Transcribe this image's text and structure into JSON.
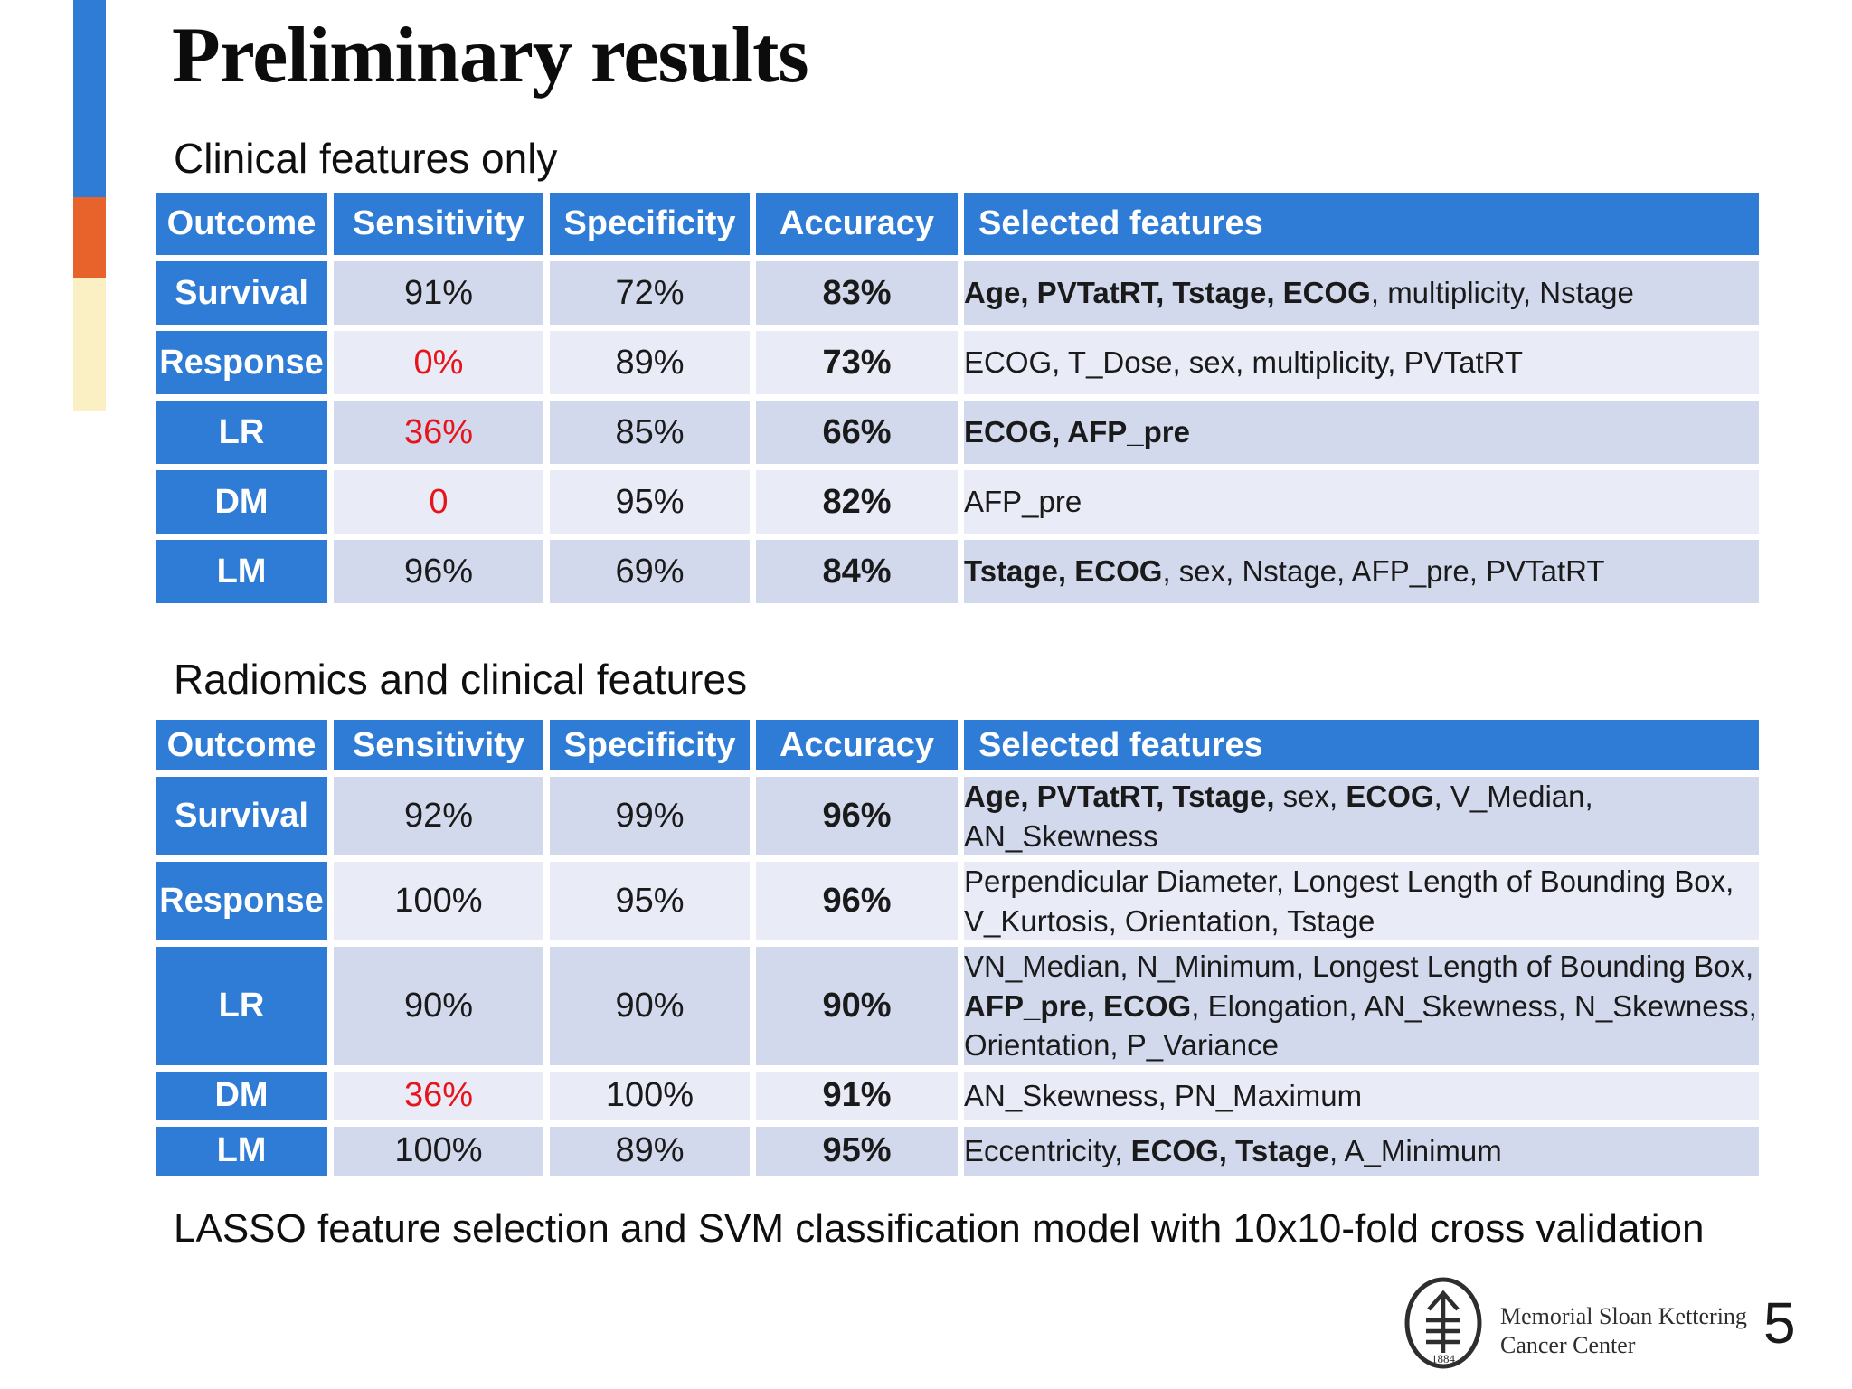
{
  "slide": {
    "title": "Preliminary results",
    "footnote": "LASSO feature selection and SVM classification model with 10x10-fold cross validation",
    "page_number": "5"
  },
  "logo": {
    "line1": "Memorial Sloan Kettering",
    "line2": "Cancer Center",
    "year": "1884"
  },
  "colors": {
    "header_blue": "#2e7cd6",
    "accent_blue": "#2e7cd6",
    "accent_orange": "#e8632c",
    "accent_cream": "#fbefc4",
    "band_dark": "#d2d9ec",
    "band_light": "#e9ecf7",
    "alert_red": "#e8141b"
  },
  "tables": [
    {
      "section_title": "Clinical features only",
      "columns": [
        "Outcome",
        "Sensitivity",
        "Specificity",
        "Accuracy",
        "Selected features"
      ],
      "rows": [
        {
          "outcome": "Survival",
          "sensitivity": {
            "text": "91%",
            "red": false
          },
          "specificity": "72%",
          "accuracy": "83%",
          "features": [
            {
              "text": "Age, PVTatRT, Tstage, ECOG",
              "bold": true
            },
            {
              "text": ", multiplicity, Nstage",
              "bold": false
            }
          ]
        },
        {
          "outcome": "Response",
          "sensitivity": {
            "text": "0%",
            "red": true
          },
          "specificity": "89%",
          "accuracy": "73%",
          "features": [
            {
              "text": "ECOG, T_Dose, sex, multiplicity, PVTatRT",
              "bold": false
            }
          ]
        },
        {
          "outcome": "LR",
          "sensitivity": {
            "text": "36%",
            "red": true
          },
          "specificity": "85%",
          "accuracy": "66%",
          "features": [
            {
              "text": "ECOG, AFP_pre",
              "bold": true
            }
          ]
        },
        {
          "outcome": "DM",
          "sensitivity": {
            "text": "0",
            "red": true
          },
          "specificity": "95%",
          "accuracy": "82%",
          "features": [
            {
              "text": "AFP_pre",
              "bold": false
            }
          ]
        },
        {
          "outcome": "LM",
          "sensitivity": {
            "text": "96%",
            "red": false
          },
          "specificity": "69%",
          "accuracy": "84%",
          "features": [
            {
              "text": "Tstage, ECOG",
              "bold": true
            },
            {
              "text": ", sex, Nstage, AFP_pre, PVTatRT",
              "bold": false
            }
          ]
        }
      ]
    },
    {
      "section_title": "Radiomics and clinical features",
      "columns": [
        "Outcome",
        "Sensitivity",
        "Specificity",
        "Accuracy",
        "Selected features"
      ],
      "rows": [
        {
          "outcome": "Survival",
          "sensitivity": {
            "text": "92%",
            "red": false
          },
          "specificity": "99%",
          "accuracy": "96%",
          "features": [
            {
              "text": "Age, PVTatRT, Tstage,",
              "bold": true
            },
            {
              "text": " sex, ",
              "bold": false
            },
            {
              "text": "ECOG",
              "bold": true
            },
            {
              "text": ", V_Median, AN_Skewness",
              "bold": false
            }
          ]
        },
        {
          "outcome": "Response",
          "sensitivity": {
            "text": "100%",
            "red": false
          },
          "specificity": "95%",
          "accuracy": "96%",
          "features": [
            {
              "text": "Perpendicular Diameter, Longest Length of Bounding Box, V_Kurtosis, Orientation, Tstage",
              "bold": false
            }
          ]
        },
        {
          "outcome": "LR",
          "sensitivity": {
            "text": "90%",
            "red": false
          },
          "specificity": "90%",
          "accuracy": "90%",
          "features": [
            {
              "text": "VN_Median, N_Minimum, Longest Length of Bounding Box, ",
              "bold": false
            },
            {
              "text": "AFP_pre, ECOG",
              "bold": true
            },
            {
              "text": ", Elongation, AN_Skewness, N_Skewness, Orientation, P_Variance",
              "bold": false
            }
          ]
        },
        {
          "outcome": "DM",
          "sensitivity": {
            "text": "36%",
            "red": true
          },
          "specificity": "100%",
          "accuracy": "91%",
          "features": [
            {
              "text": "AN_Skewness, PN_Maximum",
              "bold": false
            }
          ]
        },
        {
          "outcome": "LM",
          "sensitivity": {
            "text": "100%",
            "red": false
          },
          "specificity": "89%",
          "accuracy": "95%",
          "features": [
            {
              "text": "Eccentricity, ",
              "bold": false
            },
            {
              "text": "ECOG, Tstage",
              "bold": true
            },
            {
              "text": ", A_Minimum",
              "bold": false
            }
          ]
        }
      ]
    }
  ]
}
